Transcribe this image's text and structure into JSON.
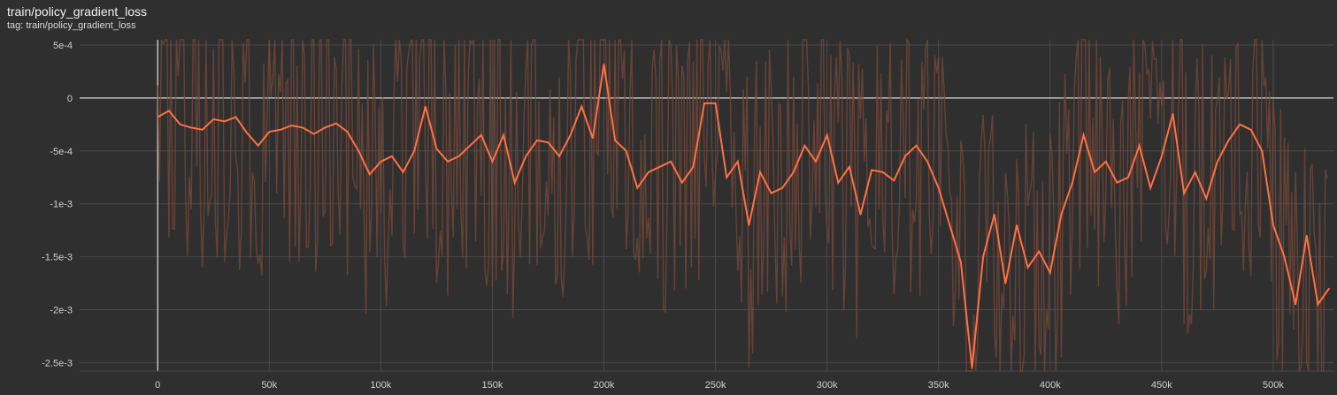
{
  "header": {
    "title": "train/policy_gradient_loss",
    "tag": "tag: train/policy_gradient_loss"
  },
  "colors": {
    "background": "#2f2f2f",
    "grid": "#4a4a4a",
    "axis": "#bdbdbd",
    "smoothed": "#ff7043",
    "raw": "#7a4a3a"
  },
  "chart_data": {
    "type": "line",
    "title": "train/policy_gradient_loss",
    "xlabel": "",
    "ylabel": "",
    "xlim": [
      -35000,
      527000
    ],
    "ylim": [
      -0.00258,
      0.00055
    ],
    "grid": true,
    "x_ticks": [
      0,
      50000,
      100000,
      150000,
      200000,
      250000,
      300000,
      350000,
      400000,
      450000,
      500000
    ],
    "x_tick_labels": [
      "0",
      "50k",
      "100k",
      "150k",
      "200k",
      "250k",
      "300k",
      "350k",
      "400k",
      "450k",
      "500k"
    ],
    "y_ticks": [
      0.0005,
      0,
      -0.0005,
      -0.001,
      -0.0015,
      -0.002,
      -0.0025
    ],
    "y_tick_labels": [
      "5e-4",
      "0",
      "-5e-4",
      "-1e-3",
      "-1.5e-3",
      "-2e-3",
      "-2.5e-3"
    ],
    "series": [
      {
        "kind": "smoothed",
        "x": [
          0,
          5000,
          10000,
          15000,
          20000,
          25000,
          30000,
          35000,
          40000,
          45000,
          50000,
          55000,
          60000,
          65000,
          70000,
          75000,
          80000,
          85000,
          90000,
          95000,
          100000,
          105000,
          110000,
          115000,
          120000,
          125000,
          130000,
          135000,
          140000,
          145000,
          150000,
          155000,
          160000,
          165000,
          170000,
          175000,
          180000,
          185000,
          190000,
          195000,
          200000,
          205000,
          210000,
          215000,
          220000,
          225000,
          230000,
          235000,
          240000,
          245000,
          250000,
          255000,
          260000,
          265000,
          270000,
          275000,
          280000,
          285000,
          290000,
          295000,
          300000,
          305000,
          310000,
          315000,
          320000,
          325000,
          330000,
          335000,
          340000,
          345000,
          350000,
          355000,
          360000,
          365000,
          370000,
          375000,
          380000,
          385000,
          390000,
          395000,
          400000,
          405000,
          410000,
          415000,
          420000,
          425000,
          430000,
          435000,
          440000,
          445000,
          450000,
          455000,
          460000,
          465000,
          470000,
          475000,
          480000,
          485000,
          490000,
          495000,
          500000,
          505000,
          510000,
          515000,
          520000,
          525000
        ],
        "y": [
          -0.00018,
          -0.00012,
          -0.00025,
          -0.00028,
          -0.0003,
          -0.0002,
          -0.00022,
          -0.00018,
          -0.00033,
          -0.00045,
          -0.00032,
          -0.0003,
          -0.00026,
          -0.00028,
          -0.00034,
          -0.00028,
          -0.00024,
          -0.00032,
          -0.0005,
          -0.00072,
          -0.0006,
          -0.00055,
          -0.0007,
          -0.0005,
          -8e-05,
          -0.00048,
          -0.0006,
          -0.00055,
          -0.00045,
          -0.00035,
          -0.0006,
          -0.00035,
          -0.0008,
          -0.00055,
          -0.0004,
          -0.00042,
          -0.00055,
          -0.00035,
          -8e-05,
          -0.00038,
          0.00032,
          -0.0004,
          -0.0005,
          -0.00085,
          -0.0007,
          -0.00065,
          -0.0006,
          -0.0008,
          -0.00065,
          -5e-05,
          -5e-05,
          -0.00075,
          -0.0006,
          -0.0012,
          -0.0007,
          -0.0009,
          -0.00085,
          -0.0007,
          -0.00045,
          -0.0006,
          -0.00035,
          -0.0008,
          -0.00065,
          -0.0011,
          -0.00068,
          -0.0007,
          -0.00078,
          -0.00055,
          -0.00045,
          -0.0006,
          -0.00085,
          -0.0012,
          -0.00155,
          -0.00255,
          -0.0015,
          -0.0011,
          -0.00175,
          -0.0012,
          -0.0016,
          -0.00145,
          -0.00165,
          -0.0011,
          -0.0008,
          -0.00035,
          -0.0007,
          -0.0006,
          -0.0008,
          -0.00075,
          -0.00045,
          -0.00085,
          -0.00055,
          -0.00015,
          -0.0009,
          -0.0007,
          -0.00095,
          -0.0006,
          -0.0004,
          -0.00025,
          -0.0003,
          -0.0005,
          -0.0012,
          -0.0015,
          -0.00195,
          -0.0013,
          -0.00195,
          -0.0018
        ]
      }
    ]
  }
}
